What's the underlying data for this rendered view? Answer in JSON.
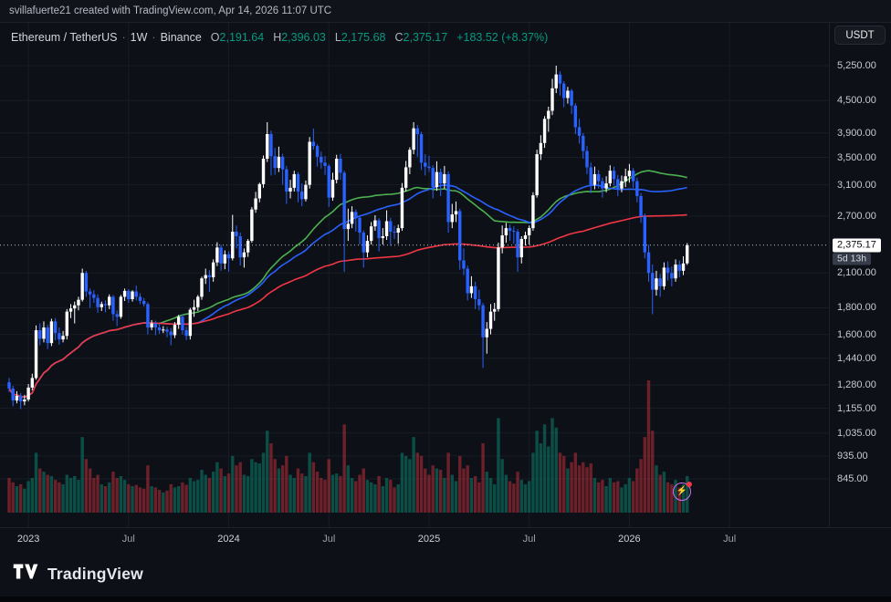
{
  "toolbar": {
    "attribution": "svillafuerte21 created with TradingView.com, Apr 14, 2026 11:07 UTC"
  },
  "header": {
    "symbol": "Ethereum / TetherUS",
    "interval": "1W",
    "exchange": "Binance",
    "sep": "·",
    "ohlc": {
      "o_label": "O",
      "o": "2,191.64",
      "h_label": "H",
      "h": "2,396.03",
      "l_label": "L",
      "l": "2,175.68",
      "c_label": "C",
      "c": "2,375.17"
    },
    "change": "+183.52 (+8.37%)"
  },
  "currency_badge": "USDT",
  "price_axis": {
    "ticks": [
      {
        "label": "5,250.00",
        "value": 5250
      },
      {
        "label": "4,500.00",
        "value": 4500
      },
      {
        "label": "3,900.00",
        "value": 3900
      },
      {
        "label": "3,500.00",
        "value": 3500
      },
      {
        "label": "3,100.00",
        "value": 3100
      },
      {
        "label": "2,700.00",
        "value": 2700
      },
      {
        "label": "2,100.00",
        "value": 2100
      },
      {
        "label": "1,800.00",
        "value": 1800
      },
      {
        "label": "1,600.00",
        "value": 1600
      },
      {
        "label": "1,440.00",
        "value": 1440
      },
      {
        "label": "1,280.00",
        "value": 1280
      },
      {
        "label": "1,155.00",
        "value": 1155
      },
      {
        "label": "1,035.00",
        "value": 1035
      },
      {
        "label": "935.00",
        "value": 935
      },
      {
        "label": "845.00",
        "value": 845
      }
    ],
    "last_price": {
      "label": "2,375.17",
      "value": 2375.17
    },
    "countdown": "5d 13h"
  },
  "time_axis": {
    "ticks": [
      {
        "label": "2023",
        "week": 5,
        "major": true
      },
      {
        "label": "Jul",
        "week": 31,
        "major": false
      },
      {
        "label": "2024",
        "week": 57,
        "major": true
      },
      {
        "label": "Jul",
        "week": 83,
        "major": false
      },
      {
        "label": "2025",
        "week": 109,
        "major": true
      },
      {
        "label": "Jul",
        "week": 135,
        "major": false
      },
      {
        "label": "2026",
        "week": 161,
        "major": true
      },
      {
        "label": "Jul",
        "week": 187,
        "major": false
      }
    ]
  },
  "footer": {
    "brand": "TradingView"
  },
  "chart_data": {
    "type": "candlestick",
    "title": "Ethereum / TetherUS Weekly on Binance",
    "symbol": "ETHUSDT",
    "timeframe": "1W",
    "price_scale": "log",
    "y_ref_price": 5250,
    "legend_position": "none",
    "grid": true,
    "last_close": 2375.17,
    "colors": {
      "up": "#ffffff",
      "down": "#2962ff",
      "vol_up": "rgba(8,153,129,0.45)",
      "vol_down": "rgba(242,54,69,0.42)",
      "grid": "#171c26",
      "last_line": "#b9bdc7"
    },
    "indicators": [
      {
        "name": "SMA 40",
        "period": 40,
        "color": "#4caf50"
      },
      {
        "name": "SMA 50",
        "period": 50,
        "color": "#2962ff"
      },
      {
        "name": "SMA 150",
        "period": 150,
        "color": "#f23645"
      }
    ],
    "candles": [
      [
        1295,
        1320,
        1240,
        1260,
        55
      ],
      [
        1260,
        1275,
        1165,
        1195,
        48
      ],
      [
        1195,
        1245,
        1180,
        1220,
        42
      ],
      [
        1220,
        1235,
        1150,
        1190,
        45
      ],
      [
        1190,
        1225,
        1170,
        1200,
        38
      ],
      [
        1200,
        1285,
        1190,
        1265,
        50
      ],
      [
        1265,
        1345,
        1250,
        1320,
        55
      ],
      [
        1320,
        1665,
        1310,
        1630,
        95
      ],
      [
        1630,
        1680,
        1525,
        1570,
        70
      ],
      [
        1570,
        1695,
        1545,
        1650,
        65
      ],
      [
        1650,
        1670,
        1500,
        1540,
        60
      ],
      [
        1540,
        1715,
        1520,
        1695,
        58
      ],
      [
        1695,
        1720,
        1560,
        1610,
        52
      ],
      [
        1610,
        1650,
        1530,
        1565,
        48
      ],
      [
        1565,
        1625,
        1545,
        1590,
        45
      ],
      [
        1590,
        1790,
        1565,
        1770,
        60
      ],
      [
        1770,
        1830,
        1720,
        1795,
        55
      ],
      [
        1795,
        1850,
        1680,
        1820,
        58
      ],
      [
        1820,
        1890,
        1780,
        1865,
        52
      ],
      [
        1865,
        2140,
        1850,
        2100,
        120
      ],
      [
        2100,
        2120,
        1890,
        1935,
        85
      ],
      [
        1935,
        1960,
        1800,
        1910,
        70
      ],
      [
        1910,
        1945,
        1840,
        1880,
        55
      ],
      [
        1880,
        1910,
        1760,
        1805,
        60
      ],
      [
        1805,
        1850,
        1775,
        1830,
        45
      ],
      [
        1830,
        1860,
        1765,
        1820,
        42
      ],
      [
        1820,
        1910,
        1790,
        1890,
        48
      ],
      [
        1890,
        1905,
        1700,
        1750,
        65
      ],
      [
        1750,
        1780,
        1660,
        1730,
        55
      ],
      [
        1730,
        1905,
        1715,
        1890,
        58
      ],
      [
        1890,
        1960,
        1855,
        1940,
        52
      ],
      [
        1940,
        1955,
        1840,
        1870,
        45
      ],
      [
        1870,
        1945,
        1850,
        1935,
        42
      ],
      [
        1935,
        1985,
        1860,
        1890,
        44
      ],
      [
        1890,
        1920,
        1830,
        1855,
        40
      ],
      [
        1855,
        1880,
        1810,
        1830,
        38
      ],
      [
        1830,
        1845,
        1600,
        1650,
        75
      ],
      [
        1650,
        1705,
        1630,
        1680,
        42
      ],
      [
        1680,
        1700,
        1595,
        1650,
        40
      ],
      [
        1650,
        1675,
        1605,
        1630,
        36
      ],
      [
        1630,
        1660,
        1610,
        1635,
        32
      ],
      [
        1635,
        1655,
        1580,
        1620,
        35
      ],
      [
        1620,
        1645,
        1525,
        1595,
        45
      ],
      [
        1595,
        1690,
        1575,
        1670,
        40
      ],
      [
        1670,
        1745,
        1640,
        1730,
        42
      ],
      [
        1730,
        1750,
        1600,
        1630,
        48
      ],
      [
        1630,
        1655,
        1560,
        1590,
        44
      ],
      [
        1590,
        1800,
        1565,
        1785,
        55
      ],
      [
        1785,
        1865,
        1730,
        1805,
        50
      ],
      [
        1805,
        1905,
        1775,
        1890,
        52
      ],
      [
        1890,
        2065,
        1865,
        2050,
        68
      ],
      [
        2050,
        2140,
        2000,
        2080,
        60
      ],
      [
        2080,
        2125,
        1930,
        2060,
        55
      ],
      [
        2060,
        2230,
        2020,
        2200,
        65
      ],
      [
        2200,
        2405,
        2165,
        2350,
        80
      ],
      [
        2350,
        2380,
        2120,
        2190,
        70
      ],
      [
        2190,
        2320,
        2135,
        2280,
        58
      ],
      [
        2280,
        2310,
        2110,
        2240,
        62
      ],
      [
        2240,
        2715,
        2220,
        2520,
        90
      ],
      [
        2520,
        2590,
        2340,
        2470,
        75
      ],
      [
        2470,
        2510,
        2170,
        2250,
        80
      ],
      [
        2250,
        2340,
        2150,
        2300,
        60
      ],
      [
        2300,
        2440,
        2255,
        2420,
        58
      ],
      [
        2420,
        2810,
        2400,
        2780,
        85
      ],
      [
        2780,
        3005,
        2740,
        2920,
        80
      ],
      [
        2920,
        3130,
        2870,
        3110,
        78
      ],
      [
        3110,
        3530,
        3060,
        3480,
        95
      ],
      [
        3480,
        4090,
        3430,
        3880,
        130
      ],
      [
        3880,
        3940,
        3230,
        3520,
        110
      ],
      [
        3520,
        3650,
        3240,
        3340,
        85
      ],
      [
        3340,
        3670,
        3280,
        3510,
        70
      ],
      [
        3510,
        3555,
        3100,
        3320,
        75
      ],
      [
        3320,
        3370,
        2850,
        3010,
        90
      ],
      [
        3010,
        3170,
        2920,
        3060,
        60
      ],
      [
        3060,
        3300,
        3010,
        3250,
        55
      ],
      [
        3250,
        3280,
        2870,
        3010,
        70
      ],
      [
        3010,
        3120,
        2820,
        2910,
        62
      ],
      [
        2910,
        3160,
        2880,
        3100,
        58
      ],
      [
        3100,
        3830,
        3050,
        3750,
        95
      ],
      [
        3750,
        3975,
        3620,
        3680,
        80
      ],
      [
        3680,
        3710,
        3360,
        3510,
        65
      ],
      [
        3510,
        3590,
        3330,
        3420,
        55
      ],
      [
        3420,
        3520,
        3240,
        3370,
        52
      ],
      [
        3370,
        3400,
        2810,
        2930,
        85
      ],
      [
        2930,
        3270,
        2890,
        3170,
        60
      ],
      [
        3170,
        3540,
        3120,
        3480,
        62
      ],
      [
        3480,
        3555,
        3170,
        3270,
        58
      ],
      [
        3270,
        3300,
        2110,
        2550,
        140
      ],
      [
        2550,
        2790,
        2420,
        2610,
        75
      ],
      [
        2610,
        2820,
        2560,
        2750,
        55
      ],
      [
        2750,
        2780,
        2520,
        2680,
        50
      ],
      [
        2680,
        2710,
        2380,
        2510,
        60
      ],
      [
        2510,
        2535,
        2150,
        2300,
        70
      ],
      [
        2300,
        2480,
        2250,
        2420,
        52
      ],
      [
        2420,
        2630,
        2380,
        2580,
        48
      ],
      [
        2580,
        2710,
        2530,
        2650,
        45
      ],
      [
        2650,
        2675,
        2310,
        2450,
        58
      ],
      [
        2450,
        2560,
        2380,
        2470,
        42
      ],
      [
        2470,
        2770,
        2430,
        2640,
        55
      ],
      [
        2640,
        2680,
        2370,
        2520,
        52
      ],
      [
        2520,
        2590,
        2440,
        2510,
        40
      ],
      [
        2510,
        2600,
        2390,
        2560,
        45
      ],
      [
        2560,
        3125,
        2530,
        3060,
        95
      ],
      [
        3060,
        3445,
        3010,
        3350,
        90
      ],
      [
        3350,
        3660,
        3250,
        3620,
        85
      ],
      [
        3620,
        4090,
        3550,
        3980,
        120
      ],
      [
        3980,
        4040,
        3510,
        3880,
        95
      ],
      [
        3880,
        3920,
        3310,
        3420,
        90
      ],
      [
        3420,
        3550,
        3230,
        3360,
        70
      ],
      [
        3360,
        3525,
        3280,
        3340,
        60
      ],
      [
        3340,
        3380,
        2920,
        3070,
        75
      ],
      [
        3070,
        3440,
        3020,
        3280,
        70
      ],
      [
        3280,
        3330,
        2950,
        3120,
        68
      ],
      [
        3120,
        3370,
        3050,
        3250,
        55
      ],
      [
        3250,
        3290,
        2510,
        2630,
        95
      ],
      [
        2630,
        2850,
        2560,
        2720,
        60
      ],
      [
        2720,
        2880,
        2630,
        2760,
        50
      ],
      [
        2760,
        2790,
        2130,
        2220,
        90
      ],
      [
        2220,
        2340,
        2080,
        2140,
        70
      ],
      [
        2140,
        2170,
        1860,
        1920,
        75
      ],
      [
        1920,
        2070,
        1880,
        1980,
        55
      ],
      [
        1980,
        2020,
        1790,
        1870,
        58
      ],
      [
        1870,
        1950,
        1780,
        1820,
        48
      ],
      [
        1820,
        1840,
        1380,
        1580,
        110
      ],
      [
        1580,
        1690,
        1470,
        1640,
        65
      ],
      [
        1640,
        1830,
        1600,
        1770,
        55
      ],
      [
        1770,
        1840,
        1700,
        1790,
        45
      ],
      [
        1790,
        2400,
        1770,
        2350,
        150
      ],
      [
        2350,
        2590,
        2290,
        2480,
        85
      ],
      [
        2480,
        2620,
        2400,
        2560,
        60
      ],
      [
        2560,
        2600,
        2420,
        2530,
        50
      ],
      [
        2530,
        2580,
        2390,
        2520,
        46
      ],
      [
        2520,
        2550,
        2110,
        2250,
        65
      ],
      [
        2250,
        2470,
        2190,
        2440,
        52
      ],
      [
        2440,
        2520,
        2370,
        2480,
        45
      ],
      [
        2480,
        2590,
        2380,
        2560,
        50
      ],
      [
        2560,
        3000,
        2530,
        2960,
        95
      ],
      [
        2960,
        3620,
        2930,
        3550,
        130
      ],
      [
        3550,
        3860,
        3460,
        3730,
        110
      ],
      [
        3730,
        4200,
        3650,
        4150,
        140
      ],
      [
        4150,
        4380,
        3920,
        4300,
        105
      ],
      [
        4300,
        4955,
        4220,
        4750,
        150
      ],
      [
        4750,
        5250,
        4650,
        5050,
        135
      ],
      [
        5050,
        5120,
        4600,
        4850,
        95
      ],
      [
        4850,
        4900,
        4370,
        4550,
        90
      ],
      [
        4550,
        4780,
        4440,
        4700,
        70
      ],
      [
        4700,
        4740,
        4240,
        4400,
        80
      ],
      [
        4400,
        4450,
        3880,
        4000,
        95
      ],
      [
        4000,
        4150,
        3720,
        3850,
        75
      ],
      [
        3850,
        3900,
        3480,
        3600,
        80
      ],
      [
        3600,
        3680,
        3250,
        3350,
        72
      ],
      [
        3350,
        3420,
        2990,
        3100,
        78
      ],
      [
        3100,
        3360,
        3040,
        3250,
        55
      ],
      [
        3250,
        3310,
        3050,
        3150,
        48
      ],
      [
        3150,
        3200,
        2930,
        3050,
        52
      ],
      [
        3050,
        3220,
        3000,
        3120,
        42
      ],
      [
        3120,
        3380,
        3080,
        3300,
        55
      ],
      [
        3300,
        3360,
        3090,
        3180,
        48
      ],
      [
        3180,
        3240,
        2950,
        3050,
        50
      ],
      [
        3050,
        3230,
        3000,
        3150,
        40
      ],
      [
        3150,
        3330,
        3070,
        3220,
        45
      ],
      [
        3220,
        3400,
        3130,
        3300,
        55
      ],
      [
        3300,
        3340,
        3060,
        3150,
        50
      ],
      [
        3150,
        3200,
        2870,
        2950,
        70
      ],
      [
        2950,
        2990,
        2620,
        2700,
        85
      ],
      [
        2700,
        2730,
        2240,
        2300,
        120
      ],
      [
        2300,
        2380,
        2020,
        2100,
        210
      ],
      [
        2100,
        2180,
        1750,
        1950,
        130
      ],
      [
        1950,
        2120,
        1900,
        2050,
        75
      ],
      [
        2050,
        2090,
        1890,
        1980,
        60
      ],
      [
        1980,
        2200,
        1950,
        2150,
        65
      ],
      [
        2150,
        2210,
        2030,
        2100,
        48
      ],
      [
        2100,
        2160,
        1980,
        2050,
        45
      ],
      [
        2050,
        2230,
        2020,
        2180,
        52
      ],
      [
        2180,
        2220,
        2060,
        2120,
        40
      ],
      [
        2120,
        2260,
        2080,
        2190,
        45
      ],
      [
        2191.64,
        2396.03,
        2175.68,
        2375.17,
        58
      ]
    ]
  }
}
